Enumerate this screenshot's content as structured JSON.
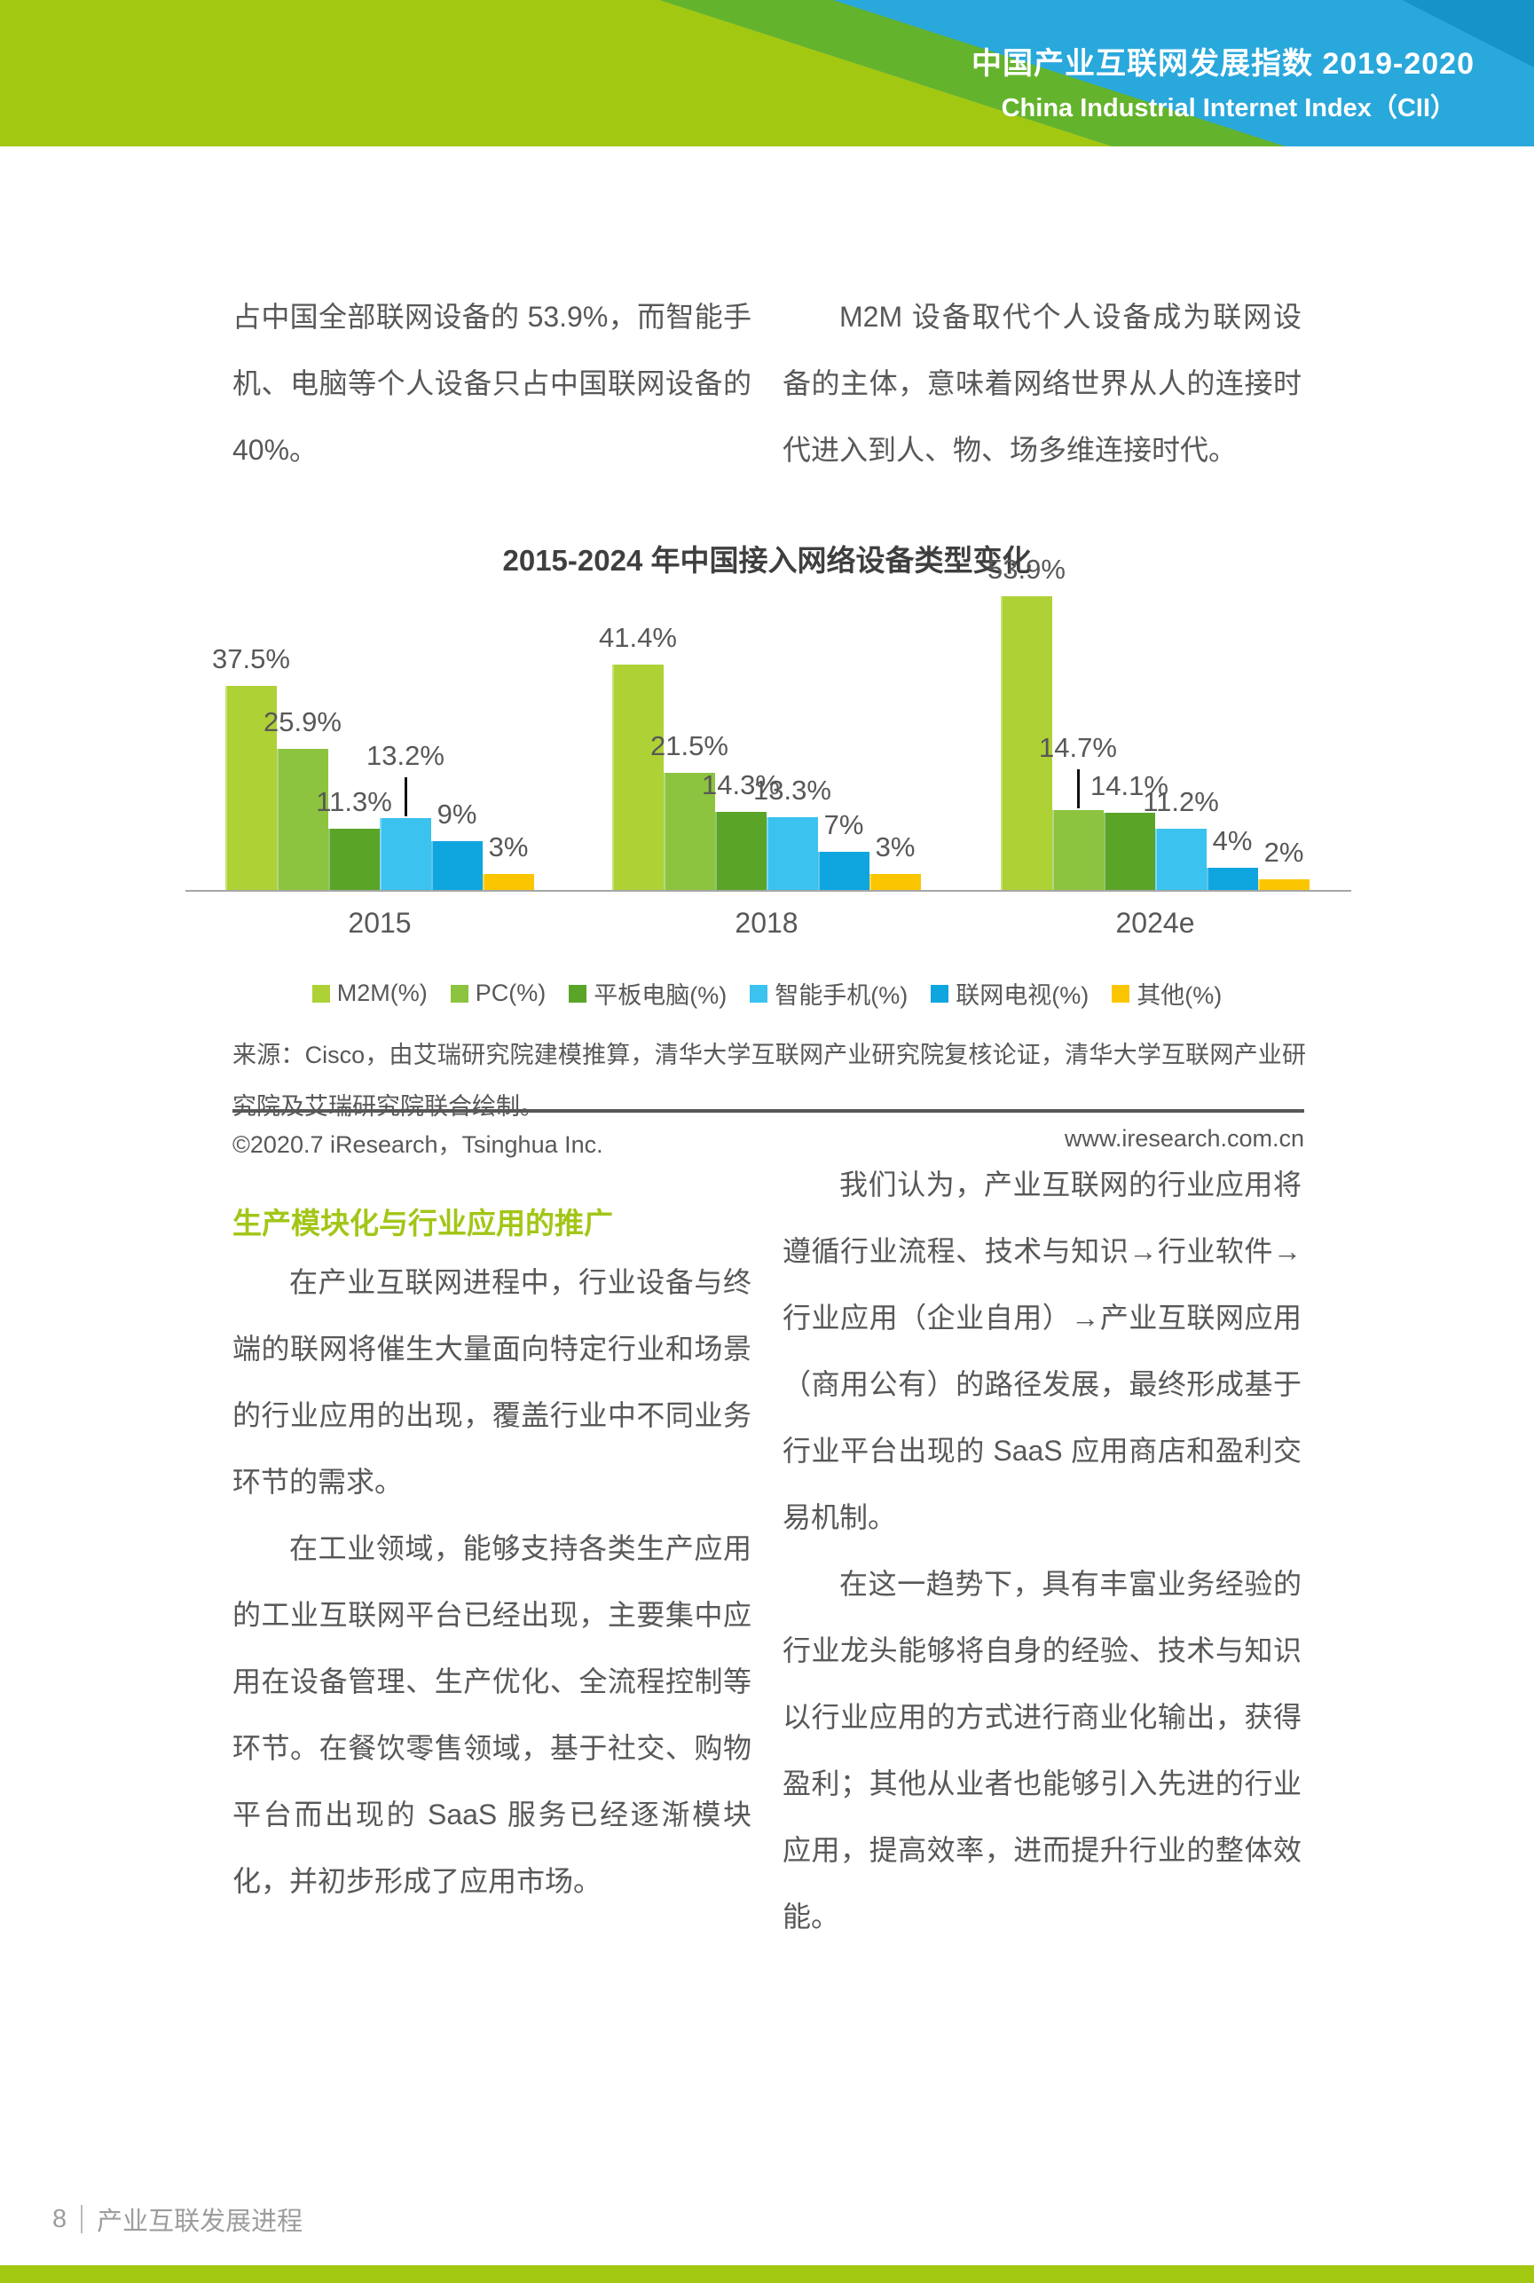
{
  "header": {
    "title_zh": "中国产业互联网发展指数 2019-2020",
    "title_en": "China Industrial Internet Index（CII）"
  },
  "intro": {
    "left": "占中国全部联网设备的 53.9%，而智能手机、电脑等个人设备只占中国联网设备的 40%。",
    "right": "M2M 设备取代个人设备成为联网设备的主体，意味着网络世界从人的连接时代进入到人、物、场多维连接时代。"
  },
  "chart_data": {
    "type": "bar",
    "title": "2015-2024 年中国接入网络设备类型变化",
    "categories": [
      "2015",
      "2018",
      "2024e"
    ],
    "series": [
      {
        "name": "M2M(%)",
        "color": "#aed136",
        "values": [
          37.5,
          41.4,
          53.9
        ]
      },
      {
        "name": "PC(%)",
        "color": "#8cc43f",
        "values": [
          25.9,
          21.5,
          14.7
        ]
      },
      {
        "name": "平板电脑(%)",
        "color": "#5aa428",
        "values": [
          11.3,
          14.3,
          14.1
        ]
      },
      {
        "name": "智能手机(%)",
        "color": "#3bc2ee",
        "values": [
          13.2,
          13.3,
          11.2
        ]
      },
      {
        "name": "联网电视(%)",
        "color": "#0fa6e0",
        "values": [
          9,
          7,
          4
        ]
      },
      {
        "name": "其他(%)",
        "color": "#fbc600",
        "values": [
          3,
          3,
          2
        ]
      }
    ],
    "unit": "%",
    "ylim": [
      0,
      60
    ],
    "grid": false,
    "legend_position": "bottom",
    "value_labels": true
  },
  "source": {
    "text": "来源：Cisco，由艾瑞研究院建模推算，清华大学互联网产业研究院复核论证，清华大学互联网产业研究院及艾瑞研究院联合绘制。"
  },
  "copyright": {
    "left": "©2020.7 iResearch，Tsinghua Inc.",
    "right": "www.iresearch.com.cn"
  },
  "section": {
    "heading": "生产模块化与行业应用的推广",
    "left_paragraphs": [
      "在产业互联网进程中，行业设备与终端的联网将催生大量面向特定行业和场景的行业应用的出现，覆盖行业中不同业务环节的需求。",
      "在工业领域，能够支持各类生产应用的工业互联网平台已经出现，主要集中应用在设备管理、生产优化、全流程控制等环节。在餐饮零售领域，基于社交、购物平台而出现的 SaaS 服务已经逐渐模块化，并初步形成了应用市场。"
    ],
    "right_paragraphs": [
      "我们认为，产业互联网的行业应用将遵循行业流程、技术与知识→行业软件→行业应用（企业自用）→产业互联网应用（商用公有）的路径发展，最终形成基于行业平台出现的 SaaS 应用商店和盈利交易机制。",
      "在这一趋势下，具有丰富业务经验的行业龙头能够将自身的经验、技术与知识以行业应用的方式进行商业化输出，获得盈利；其他从业者也能够引入先进的行业应用，提高效率，进而提升行业的整体效能。"
    ]
  },
  "footer": {
    "page_number": "8",
    "section_name": "产业互联发展进程"
  },
  "colors": {
    "lime": "#a3c812",
    "dark_green": "#64b32c",
    "header_blue": "#29a8dc",
    "header_dark_blue": "#1694c8",
    "text_gray": "#595757",
    "footer_gray": "#9c9d9d",
    "heading_green": "#a2c617"
  }
}
